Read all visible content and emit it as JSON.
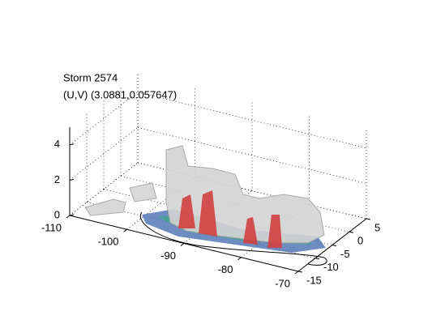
{
  "chart_data": {
    "type": "surface",
    "title": "Storm 2574",
    "subtitle": "(U,V) (3.0881,0.057647)",
    "xlim": [
      -110,
      -70
    ],
    "xticks": [
      -110,
      -100,
      -90,
      -80,
      -70
    ],
    "ylim": [
      -15,
      5
    ],
    "yticks": [
      -15,
      -10,
      -5,
      0,
      5
    ],
    "zlim": [
      0,
      5
    ],
    "zticks": [
      0,
      2,
      4
    ],
    "grid": true
  }
}
